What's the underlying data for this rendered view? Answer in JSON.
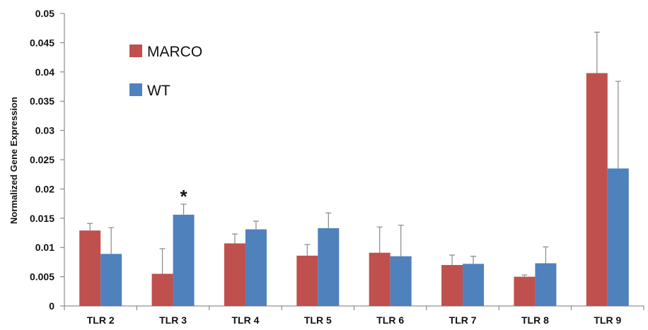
{
  "chart_data": {
    "type": "bar",
    "title": "",
    "xlabel": "",
    "ylabel": "Normalized Gene Expression",
    "ylim": [
      0,
      0.05
    ],
    "yticks": [
      "0",
      "0.005",
      "0.01",
      "0.015",
      "0.02",
      "0.025",
      "0.03",
      "0.035",
      "0.04",
      "0.045",
      "0.05"
    ],
    "categories": [
      "TLR 2",
      "TLR 3",
      "TLR 4",
      "TLR 5",
      "TLR 6",
      "TLR 7",
      "TLR 8",
      "TLR 9"
    ],
    "series": [
      {
        "name": "MARCO",
        "color": "#c0504d",
        "values": [
          0.0129,
          0.0055,
          0.0107,
          0.0086,
          0.0091,
          0.007,
          0.005,
          0.0398
        ],
        "errors": [
          0.0012,
          0.0043,
          0.0016,
          0.0019,
          0.0044,
          0.0017,
          0.0003,
          0.007
        ]
      },
      {
        "name": "WT",
        "color": "#4f81bd",
        "values": [
          0.0089,
          0.0156,
          0.0131,
          0.0133,
          0.0085,
          0.0072,
          0.0073,
          0.0235
        ],
        "errors": [
          0.0045,
          0.0018,
          0.0014,
          0.0026,
          0.0053,
          0.0013,
          0.0028,
          0.0149
        ]
      }
    ],
    "annotations": [
      {
        "text": "*",
        "category": "TLR 3",
        "series": "WT"
      }
    ],
    "legend_position": "top-left",
    "grid": false
  }
}
